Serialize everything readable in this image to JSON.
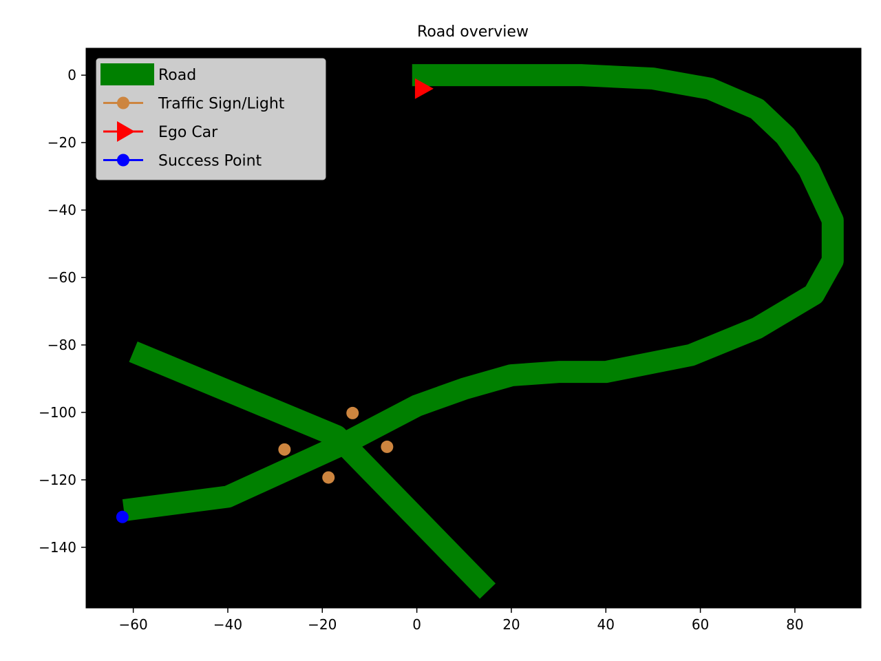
{
  "chart_data": {
    "type": "line",
    "title": "Road overview",
    "xlabel": "",
    "ylabel": "",
    "xlim": [
      -70,
      94
    ],
    "ylim": [
      -158,
      8
    ],
    "background": "#000000",
    "grid": false,
    "legend_position": "upper-left",
    "xticks": [
      -60,
      -40,
      -20,
      0,
      20,
      40,
      60,
      80
    ],
    "yticks": [
      0,
      -20,
      -40,
      -60,
      -80,
      -100,
      -120,
      -140
    ],
    "xtick_labels": [
      "−60",
      "−40",
      "−20",
      "0",
      "20",
      "40",
      "60",
      "80"
    ],
    "ytick_labels": [
      "0",
      "−20",
      "−40",
      "−60",
      "−80",
      "−100",
      "−120",
      "−140"
    ],
    "legend": [
      {
        "label": "Road",
        "color": "#008000",
        "kind": "road"
      },
      {
        "label": "Traffic Sign/Light",
        "color": "#cd853f",
        "kind": "dot"
      },
      {
        "label": "Ego Car",
        "color": "#ff0000",
        "kind": "triangle"
      },
      {
        "label": "Success Point",
        "color": "#0000ff",
        "kind": "dot"
      }
    ],
    "roads": [
      {
        "name": "Road",
        "color": "#008000",
        "points": [
          [
            -1,
            0
          ],
          [
            15,
            0
          ],
          [
            35,
            0
          ],
          [
            50,
            -1
          ],
          [
            62,
            -4
          ],
          [
            72,
            -10
          ],
          [
            78,
            -18
          ],
          [
            83,
            -28
          ],
          [
            88,
            -43
          ],
          [
            88,
            -55
          ],
          [
            84,
            -65
          ],
          [
            72,
            -75
          ],
          [
            58,
            -83
          ],
          [
            40,
            -88
          ],
          [
            30,
            -88
          ],
          [
            20,
            -89
          ],
          [
            10,
            -93
          ],
          [
            0,
            -98
          ],
          [
            -15,
            -109
          ],
          [
            -40,
            -125
          ],
          [
            -62,
            -129
          ]
        ]
      },
      {
        "name": "Road",
        "color": "#008000",
        "points": [
          [
            -60,
            -82
          ],
          [
            -17,
            -107
          ],
          [
            15,
            -153
          ]
        ]
      }
    ],
    "signs": {
      "name": "Traffic Sign/Light",
      "color": "#cd853f",
      "points": [
        [
          -13.6,
          -100.2
        ],
        [
          -28,
          -111
        ],
        [
          -6.3,
          -110.2
        ],
        [
          -18.7,
          -119.3
        ]
      ]
    },
    "ego_car": {
      "name": "Ego Car",
      "color": "#ff0000",
      "x": 1.5,
      "y": -4
    },
    "success_point": {
      "name": "Success Point",
      "color": "#0000ff",
      "x": -62.3,
      "y": -131
    }
  }
}
